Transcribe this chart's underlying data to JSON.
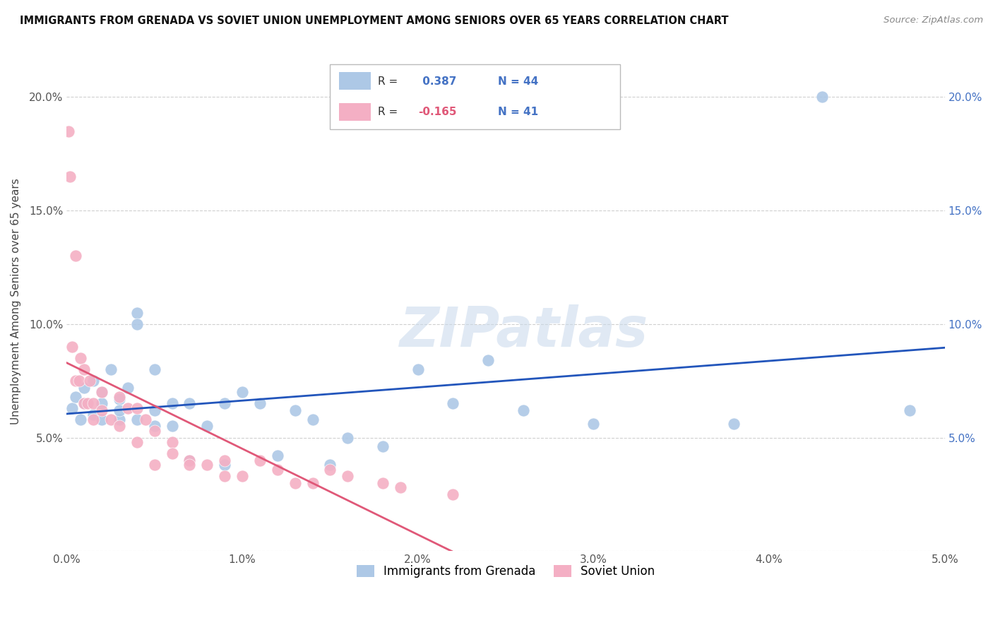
{
  "title": "IMMIGRANTS FROM GRENADA VS SOVIET UNION UNEMPLOYMENT AMONG SENIORS OVER 65 YEARS CORRELATION CHART",
  "source": "Source: ZipAtlas.com",
  "ylabel": "Unemployment Among Seniors over 65 years",
  "xlim": [
    0.0,
    0.05
  ],
  "ylim": [
    0.0,
    0.22
  ],
  "xticks": [
    0.0,
    0.01,
    0.02,
    0.03,
    0.04,
    0.05
  ],
  "xticklabels": [
    "0.0%",
    "1.0%",
    "2.0%",
    "3.0%",
    "4.0%",
    "5.0%"
  ],
  "yticks": [
    0.0,
    0.05,
    0.1,
    0.15,
    0.2
  ],
  "yticklabels_left": [
    "",
    "5.0%",
    "10.0%",
    "15.0%",
    "20.0%"
  ],
  "yticklabels_right": [
    "",
    "5.0%",
    "10.0%",
    "15.0%",
    "20.0%"
  ],
  "grenada_R": 0.387,
  "grenada_N": 44,
  "soviet_R": -0.165,
  "soviet_N": 41,
  "grenada_color": "#adc8e6",
  "soviet_color": "#f4afc4",
  "grenada_line_color": "#2255bb",
  "soviet_line_color": "#e05878",
  "watermark": "ZIPatlas",
  "grenada_x": [
    0.0003,
    0.0005,
    0.0008,
    0.001,
    0.001,
    0.0015,
    0.0015,
    0.002,
    0.002,
    0.002,
    0.0025,
    0.003,
    0.003,
    0.003,
    0.0035,
    0.004,
    0.004,
    0.004,
    0.005,
    0.005,
    0.005,
    0.006,
    0.006,
    0.007,
    0.007,
    0.008,
    0.009,
    0.009,
    0.01,
    0.011,
    0.012,
    0.013,
    0.014,
    0.015,
    0.016,
    0.018,
    0.02,
    0.022,
    0.024,
    0.026,
    0.03,
    0.038,
    0.043,
    0.048
  ],
  "grenada_y": [
    0.063,
    0.068,
    0.058,
    0.072,
    0.065,
    0.075,
    0.06,
    0.07,
    0.058,
    0.065,
    0.08,
    0.067,
    0.058,
    0.062,
    0.072,
    0.105,
    0.1,
    0.058,
    0.062,
    0.055,
    0.08,
    0.065,
    0.055,
    0.065,
    0.04,
    0.055,
    0.065,
    0.038,
    0.07,
    0.065,
    0.042,
    0.062,
    0.058,
    0.038,
    0.05,
    0.046,
    0.08,
    0.065,
    0.084,
    0.062,
    0.056,
    0.056,
    0.2,
    0.062
  ],
  "soviet_x": [
    0.0001,
    0.0002,
    0.0003,
    0.0005,
    0.0005,
    0.0007,
    0.0008,
    0.001,
    0.001,
    0.0012,
    0.0013,
    0.0015,
    0.0015,
    0.002,
    0.002,
    0.0025,
    0.003,
    0.003,
    0.0035,
    0.004,
    0.004,
    0.0045,
    0.005,
    0.005,
    0.006,
    0.006,
    0.007,
    0.007,
    0.008,
    0.009,
    0.009,
    0.01,
    0.011,
    0.012,
    0.013,
    0.014,
    0.015,
    0.016,
    0.018,
    0.019,
    0.022
  ],
  "soviet_y": [
    0.185,
    0.165,
    0.09,
    0.13,
    0.075,
    0.075,
    0.085,
    0.065,
    0.08,
    0.065,
    0.075,
    0.065,
    0.058,
    0.07,
    0.062,
    0.058,
    0.055,
    0.068,
    0.063,
    0.063,
    0.048,
    0.058,
    0.053,
    0.038,
    0.048,
    0.043,
    0.04,
    0.038,
    0.038,
    0.04,
    0.033,
    0.033,
    0.04,
    0.036,
    0.03,
    0.03,
    0.036,
    0.033,
    0.03,
    0.028,
    0.025
  ]
}
